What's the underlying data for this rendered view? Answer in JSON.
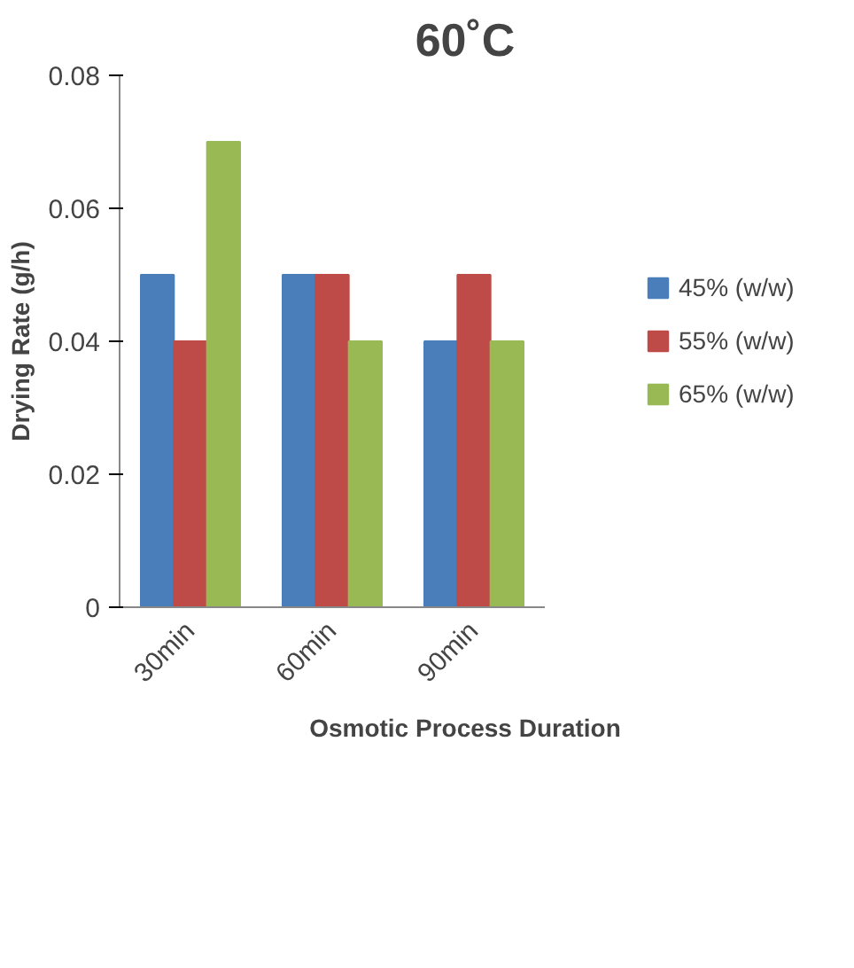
{
  "chart_data": {
    "type": "bar",
    "title": "60˚C",
    "xlabel": "Osmotic Process Duration",
    "ylabel": "Drying Rate (g/h)",
    "categories": [
      "30min",
      "60min",
      "90min"
    ],
    "series": [
      {
        "name": "45% (w/w)",
        "color": "#4a7ebb",
        "values": [
          0.05,
          0.05,
          0.04
        ]
      },
      {
        "name": "55% (w/w)",
        "color": "#be4b48",
        "values": [
          0.04,
          0.05,
          0.05
        ]
      },
      {
        "name": "65% (w/w)",
        "color": "#98b954",
        "values": [
          0.07,
          0.04,
          0.04
        ]
      }
    ],
    "ylim": [
      0,
      0.08
    ],
    "yticks": [
      0,
      0.02,
      0.04,
      0.06,
      0.08
    ],
    "legend": "right"
  }
}
